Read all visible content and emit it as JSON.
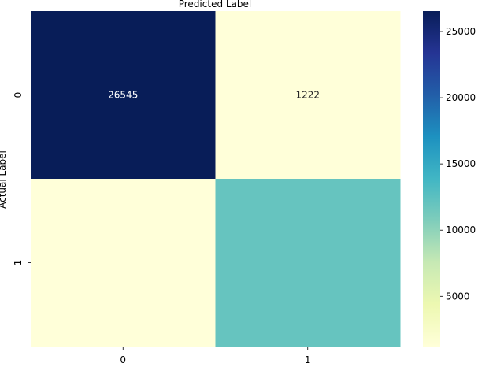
{
  "chart_data": {
    "type": "heatmap",
    "title": "Predicted Label",
    "xlabel": "",
    "ylabel": "Actual Label",
    "x_categories": [
      "0",
      "1"
    ],
    "y_categories": [
      "0",
      "1"
    ],
    "matrix": [
      [
        26545,
        1222
      ],
      [
        1212,
        12000
      ]
    ],
    "annotations": [
      [
        "26545",
        "1222"
      ],
      [
        "",
        ""
      ]
    ],
    "colorscale": "YlGnBu",
    "colorbar": {
      "range": [
        1212,
        26545
      ],
      "ticks": [
        5000,
        10000,
        15000,
        20000,
        25000
      ]
    },
    "colors": {
      "dark_cell": "#081d58",
      "light_cell": "#ffffd9",
      "mid_cell": "#6bc6c1"
    }
  }
}
